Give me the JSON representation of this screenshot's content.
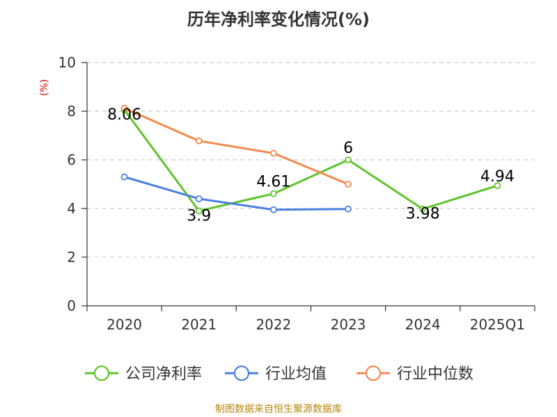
{
  "chart_data": {
    "type": "line",
    "title": "历年净利率变化情况(%)",
    "ylabel": "(%)",
    "xlabel": "",
    "categories": [
      "2020",
      "2021",
      "2022",
      "2023",
      "2024",
      "2025Q1"
    ],
    "ylim": [
      0,
      10
    ],
    "yticks": [
      0,
      2,
      4,
      6,
      8,
      10
    ],
    "grid": "horizontal-dashed",
    "legend_position": "bottom",
    "series": [
      {
        "name": "公司净利率",
        "color": "#5ec42a",
        "values": [
          8.06,
          3.9,
          4.61,
          6,
          3.98,
          4.94
        ],
        "labels": [
          "8.06",
          "3.9",
          "4.61",
          "6",
          "3.98",
          "4.94"
        ]
      },
      {
        "name": "行业均值",
        "color": "#4a7fe0",
        "values": [
          5.3,
          4.4,
          3.95,
          3.98,
          null,
          null
        ]
      },
      {
        "name": "行业中位数",
        "color": "#f5894f",
        "values": [
          8.12,
          6.78,
          6.27,
          5.0,
          null,
          null
        ]
      }
    ]
  },
  "source": "制图数据来自恒生聚源数据库"
}
